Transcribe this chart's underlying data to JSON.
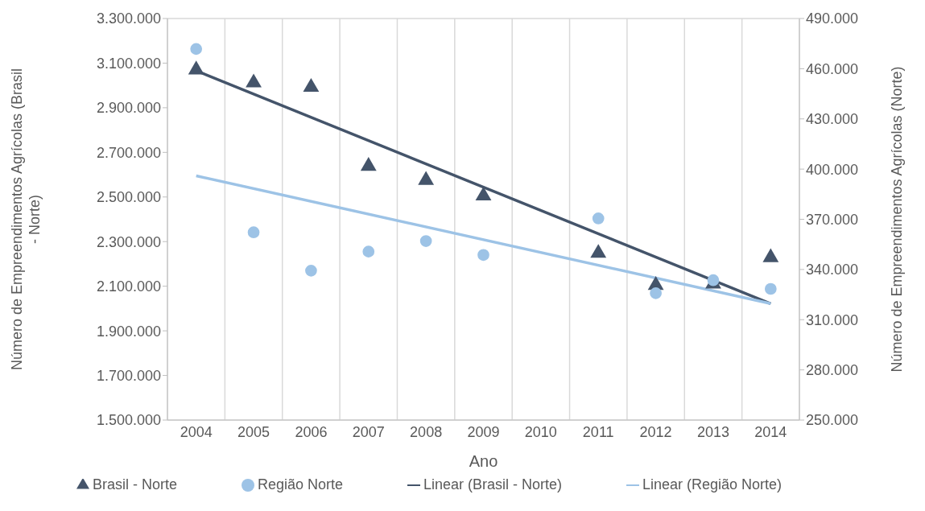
{
  "chart_data": {
    "type": "scatter",
    "xlabel": "Ano",
    "ylabel": "Número de Empreendimentos Agrícolas (Brasil - Norte)",
    "y2label": "Número de Empreendimentos Agrícolas (Norte)",
    "categories": [
      "2004",
      "2005",
      "2006",
      "2007",
      "2008",
      "2009",
      "2010",
      "2011",
      "2012",
      "2013",
      "2014"
    ],
    "series": [
      {
        "name": "Brasil - Norte",
        "type": "scatter",
        "marker": "triangle",
        "color": "#44546a",
        "values": [
          3070000,
          3012000,
          2992000,
          2638000,
          2575000,
          2505000,
          null,
          2248000,
          2104000,
          2110000,
          2229000
        ]
      },
      {
        "name": "Região Norte",
        "type": "scatter",
        "marker": "circle",
        "color": "#9dc3e6",
        "axis": "y2",
        "values": [
          471800,
          362200,
          339300,
          350700,
          357000,
          348700,
          null,
          370500,
          325800,
          333600,
          328400
        ]
      },
      {
        "name": "Linear (Brasil - Norte)",
        "type": "line",
        "marker": "none",
        "color": "#44546a",
        "values": [
          3066000,
          null,
          null,
          null,
          null,
          null,
          null,
          null,
          null,
          null,
          2022000
        ]
      },
      {
        "name": "Linear (Região Norte)",
        "type": "line",
        "marker": "none",
        "color": "#9dc3e6",
        "axis": "y2",
        "values": [
          396000,
          null,
          null,
          null,
          null,
          null,
          null,
          null,
          null,
          null,
          319600
        ]
      }
    ],
    "ylim": [
      1500000,
      3300000
    ],
    "yticks": [
      {
        "value": 1500000,
        "label": "1.500.000"
      },
      {
        "value": 1700000,
        "label": "1.700.000"
      },
      {
        "value": 1900000,
        "label": "1.900.000"
      },
      {
        "value": 2100000,
        "label": "2.100.000"
      },
      {
        "value": 2300000,
        "label": "2.300.000"
      },
      {
        "value": 2500000,
        "label": "2.500.000"
      },
      {
        "value": 2700000,
        "label": "2.700.000"
      },
      {
        "value": 2900000,
        "label": "2.900.000"
      },
      {
        "value": 3100000,
        "label": "3.100.000"
      },
      {
        "value": 3300000,
        "label": "3.300.000"
      }
    ],
    "y2lim": [
      250000,
      490000
    ],
    "y2ticks": [
      {
        "value": 250000,
        "label": "250.000"
      },
      {
        "value": 280000,
        "label": "280.000"
      },
      {
        "value": 310000,
        "label": "310.000"
      },
      {
        "value": 340000,
        "label": "340.000"
      },
      {
        "value": 370000,
        "label": "370.000"
      },
      {
        "value": 400000,
        "label": "400.000"
      },
      {
        "value": 430000,
        "label": "430.000"
      },
      {
        "value": 460000,
        "label": "460.000"
      },
      {
        "value": 490000,
        "label": "490.000"
      }
    ],
    "grid": true,
    "legend": "bottom"
  }
}
